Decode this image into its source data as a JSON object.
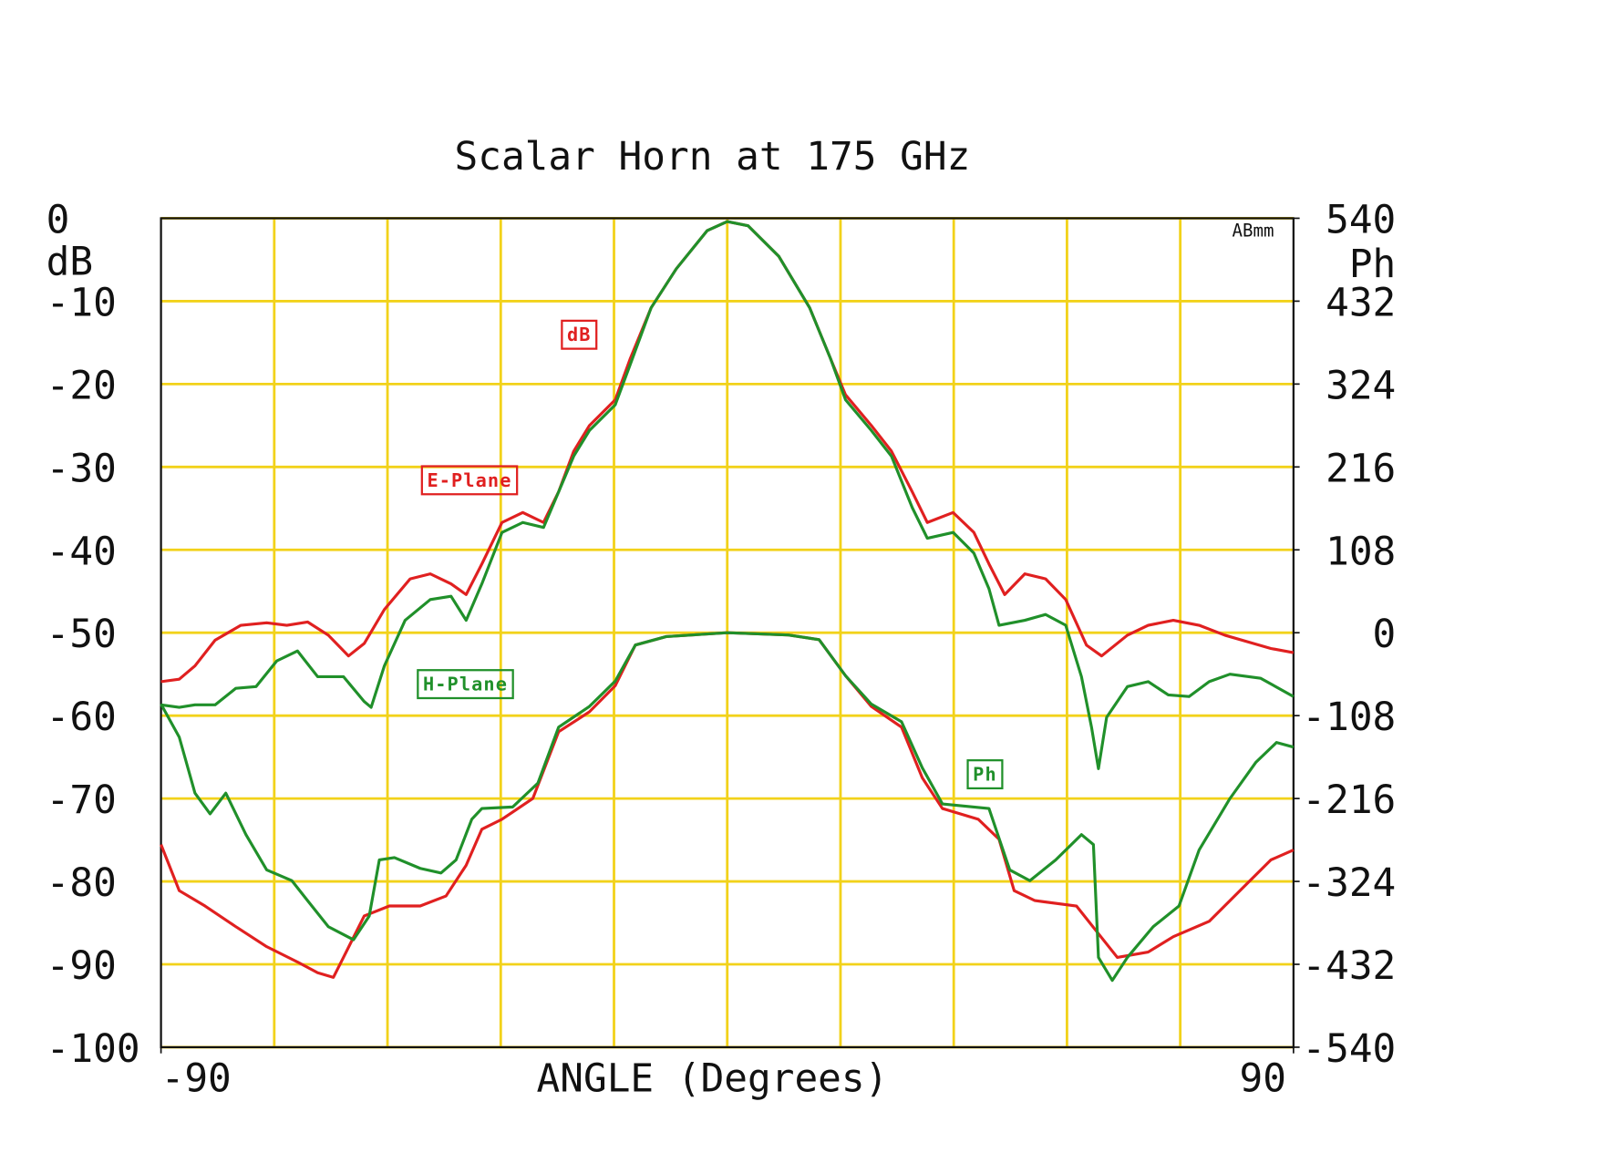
{
  "chart_data": {
    "type": "line",
    "title": "Scalar Horn at 175 GHz",
    "x_label": "ANGLE (Degrees)",
    "y_label": "dB",
    "y2_label": "Ph",
    "corner_note": "ABmm",
    "annotations": [
      {
        "text": "dB",
        "color": "#e02020"
      },
      {
        "text": "Ph",
        "color": "#20902a"
      }
    ],
    "xlim": [
      -90,
      90
    ],
    "xticks": [
      -90,
      90
    ],
    "xgrid": [
      -72,
      -54,
      -36,
      -18,
      0,
      18,
      36,
      54,
      72
    ],
    "ylim": [
      -100,
      0
    ],
    "yticks": [
      0,
      -10,
      -20,
      -30,
      -40,
      -50,
      -60,
      -70,
      -80,
      -90,
      -100
    ],
    "y2lim": [
      -540,
      540
    ],
    "y2ticks": [
      540,
      432,
      324,
      216,
      108,
      0,
      -108,
      -216,
      -324,
      -432,
      -540
    ],
    "grid": true,
    "grid_color": "#f2d21a",
    "series": [
      {
        "name": "E-Plane",
        "color": "#e02020",
        "x": [
          -90,
          -87.1,
          -84.6,
          -81.4,
          -77.3,
          -73.2,
          -70.0,
          -66.7,
          -63.4,
          -60.2,
          -57.7,
          -54.5,
          -50.4,
          -47.2,
          -43.9,
          -41.5,
          -39.0,
          -35.8,
          -32.5,
          -29.2,
          -26.8,
          -24.4,
          -21.9,
          -17.8,
          -15.4,
          -12.1,
          -8.1,
          -3.2,
          0,
          3.3,
          8.2,
          13.1,
          16.4,
          18.8,
          22.9,
          26.1,
          29.4,
          31.8,
          35.9,
          39.2,
          41.6,
          44.1,
          47.3,
          50.6,
          53.8,
          57.1,
          59.5,
          63.6,
          66.9,
          70.9,
          75.0,
          79.1,
          83.2,
          86.4,
          90
        ],
        "values": [
          -55.9,
          -55.6,
          -54.0,
          -50.9,
          -49.1,
          -48.8,
          -49.1,
          -48.7,
          -50.3,
          -52.8,
          -51.3,
          -47.2,
          -43.5,
          -42.9,
          -44.1,
          -45.4,
          -41.7,
          -36.7,
          -35.5,
          -36.7,
          -33.0,
          -28.1,
          -25.0,
          -21.9,
          -16.9,
          -10.8,
          -6.1,
          -1.5,
          -0.4,
          -0.9,
          -4.6,
          -10.8,
          -16.9,
          -21.3,
          -25.0,
          -28.1,
          -33.0,
          -36.7,
          -35.5,
          -37.9,
          -41.7,
          -45.4,
          -42.9,
          -43.5,
          -46.0,
          -51.5,
          -52.8,
          -50.3,
          -49.1,
          -48.5,
          -49.1,
          -50.3,
          -51.2,
          -51.9,
          -52.4
        ]
      },
      {
        "name": "H-Plane",
        "color": "#20902a",
        "x": [
          -90,
          -87.1,
          -84.6,
          -81.4,
          -78.1,
          -74.9,
          -71.6,
          -68.3,
          -65.1,
          -61.0,
          -57.7,
          -56.6,
          -54.5,
          -51.2,
          -47.2,
          -43.9,
          -41.5,
          -39.0,
          -35.8,
          -32.5,
          -29.2,
          -26.8,
          -24.4,
          -21.9,
          -17.8,
          -15.4,
          -12.1,
          -8.1,
          -3.2,
          0,
          3.3,
          8.2,
          13.1,
          16.4,
          18.8,
          22.9,
          26.1,
          29.4,
          31.8,
          35.9,
          39.2,
          41.6,
          43.2,
          47.3,
          50.6,
          53.8,
          56.3,
          57.9,
          59.0,
          60.3,
          63.6,
          66.9,
          70.1,
          73.4,
          76.6,
          79.9,
          84.8,
          90
        ],
        "values": [
          -58.7,
          -59.0,
          -58.7,
          -58.7,
          -56.7,
          -56.5,
          -53.4,
          -52.2,
          -55.3,
          -55.3,
          -58.3,
          -59.0,
          -54.0,
          -48.5,
          -46.0,
          -45.6,
          -48.5,
          -44.1,
          -37.9,
          -36.7,
          -37.3,
          -33.0,
          -28.7,
          -25.6,
          -22.5,
          -17.6,
          -10.8,
          -6.1,
          -1.5,
          -0.4,
          -0.9,
          -4.6,
          -10.8,
          -16.9,
          -21.9,
          -25.6,
          -28.7,
          -34.9,
          -38.6,
          -37.9,
          -40.4,
          -44.7,
          -49.1,
          -48.5,
          -47.8,
          -49.1,
          -55.3,
          -61.4,
          -66.4,
          -60.2,
          -56.5,
          -55.9,
          -57.5,
          -57.7,
          -55.9,
          -55.0,
          -55.5,
          -57.7
        ]
      },
      {
        "color": "#e02020",
        "axis": "y2",
        "x": [
          -90,
          -87.1,
          -83.0,
          -78.1,
          -73.2,
          -68.3,
          -65.1,
          -62.6,
          -61.0,
          -57.7,
          -53.7,
          -48.8,
          -44.7,
          -41.5,
          -39.0,
          -35.8,
          -30.9,
          -26.8,
          -21.9,
          -17.8,
          -14.6,
          -9.7,
          0,
          9.7,
          14.6,
          18.8,
          22.9,
          27.7,
          31.0,
          34.2,
          39.9,
          43.2,
          45.6,
          48.9,
          55.5,
          58.7,
          62.0,
          66.9,
          70.9,
          76.6,
          81.5,
          86.4,
          90
        ],
        "values": [
          -276,
          -336,
          -356,
          -383,
          -409,
          -429,
          -443,
          -449,
          -423,
          -369,
          -356,
          -356,
          -343,
          -303,
          -256,
          -243,
          -216,
          -129,
          -103,
          -69,
          -16,
          -5,
          0,
          -3,
          -9,
          -56,
          -96,
          -123,
          -189,
          -229,
          -243,
          -269,
          -336,
          -349,
          -356,
          -389,
          -423,
          -416,
          -396,
          -376,
          -336,
          -296,
          -283
        ]
      },
      {
        "color": "#20902a",
        "axis": "y2",
        "x": [
          -90,
          -87.1,
          -84.6,
          -82.2,
          -79.7,
          -76.5,
          -73.2,
          -69.2,
          -66.7,
          -63.4,
          -59.4,
          -56.9,
          -55.3,
          -52.9,
          -48.8,
          -45.5,
          -43.1,
          -40.6,
          -39.0,
          -34.1,
          -30.1,
          -26.8,
          -21.9,
          -17.8,
          -14.6,
          -9.7,
          0,
          9.7,
          14.6,
          18.8,
          22.9,
          27.7,
          31.0,
          34.2,
          41.6,
          44.9,
          48.1,
          52.2,
          56.3,
          58.2,
          59.0,
          61.2,
          63.6,
          67.7,
          71.8,
          75.0,
          79.9,
          84.0,
          87.3,
          90
        ],
        "values": [
          -93,
          -136,
          -209,
          -236,
          -209,
          -263,
          -309,
          -323,
          -349,
          -383,
          -400,
          -369,
          -296,
          -293,
          -307,
          -313,
          -296,
          -243,
          -229,
          -227,
          -196,
          -123,
          -96,
          -63,
          -16,
          -5,
          0,
          -3,
          -9,
          -56,
          -93,
          -116,
          -176,
          -223,
          -229,
          -309,
          -323,
          -296,
          -263,
          -276,
          -423,
          -453,
          -423,
          -383,
          -356,
          -283,
          -216,
          -169,
          -143,
          -149
        ]
      }
    ]
  }
}
